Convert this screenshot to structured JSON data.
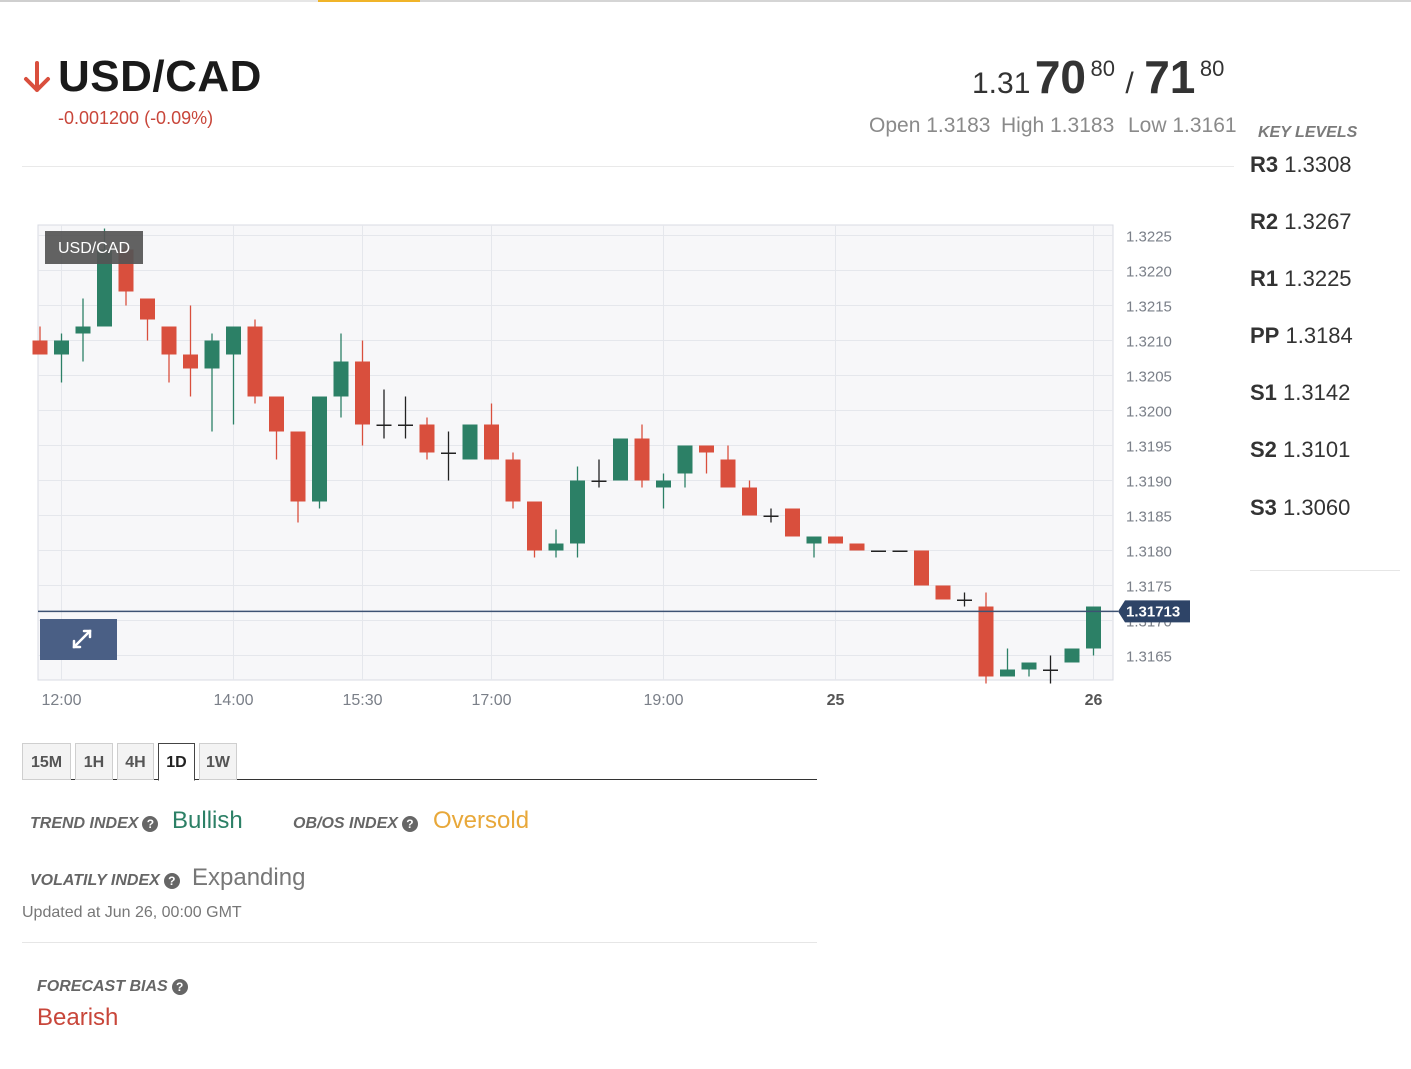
{
  "instrument": {
    "pair": "USD/CAD",
    "change": "-0.001200 (-0.09%)",
    "direction": "down"
  },
  "quote": {
    "bid_prefix": "1.31",
    "bid_big": "70",
    "bid_sup": "80",
    "separator": "/",
    "ask_big": "71",
    "ask_sup": "80"
  },
  "ohl": {
    "open": "Open 1.3183",
    "high": "High 1.3183",
    "low": "Low 1.3161"
  },
  "key_levels": {
    "title": "KEY LEVELS",
    "levels": [
      {
        "name": "R3",
        "value": "1.3308"
      },
      {
        "name": "R2",
        "value": "1.3267"
      },
      {
        "name": "R1",
        "value": "1.3225"
      },
      {
        "name": "PP",
        "value": "1.3184"
      },
      {
        "name": "S1",
        "value": "1.3142"
      },
      {
        "name": "S2",
        "value": "1.3101"
      },
      {
        "name": "S3",
        "value": "1.3060"
      }
    ]
  },
  "timeframes": [
    "15M",
    "1H",
    "4H",
    "1D",
    "1W"
  ],
  "active_timeframe": "1D",
  "indices": {
    "trend_label": "TREND INDEX",
    "trend_value": "Bullish",
    "obos_label": "OB/OS INDEX",
    "obos_value": "Oversold",
    "volatility_label": "VOLATILY INDEX",
    "volatility_value": "Expanding",
    "updated": "Updated at Jun 26, 00:00 GMT",
    "forecast_label": "FORECAST BIAS",
    "forecast_value": "Bearish"
  },
  "colors": {
    "bullish": "#2c8066",
    "bearish": "#d94f3d",
    "oversold": "#e8a83a",
    "bearish_text": "#c8463a",
    "down_arrow": "#d94f3d",
    "price_line": "#3d5273"
  },
  "chart_data": {
    "type": "candlestick",
    "chart_label": "USD/CAD",
    "current_price": 1.31713,
    "current_price_label": "1.31713",
    "y_ticks": [
      "1.3225",
      "1.3220",
      "1.3215",
      "1.3210",
      "1.3205",
      "1.3200",
      "1.3195",
      "1.3190",
      "1.3185",
      "1.3180",
      "1.3175",
      "1.3170",
      "1.3165"
    ],
    "ylim": [
      1.31615,
      1.32265
    ],
    "x_labels": [
      {
        "label": "12:00",
        "index": 1,
        "bold": false
      },
      {
        "label": "14:00",
        "index": 9,
        "bold": false
      },
      {
        "label": "15:30",
        "index": 15,
        "bold": false
      },
      {
        "label": "17:00",
        "index": 21,
        "bold": false
      },
      {
        "label": "19:00",
        "index": 29,
        "bold": false
      },
      {
        "label": "25",
        "index": 37,
        "bold": true
      },
      {
        "label": "26",
        "index": 49,
        "bold": true
      }
    ],
    "candles": [
      {
        "o": 1.321,
        "h": 1.3212,
        "l": 1.3208,
        "c": 1.3208
      },
      {
        "o": 1.3208,
        "h": 1.3211,
        "l": 1.3204,
        "c": 1.321
      },
      {
        "o": 1.3211,
        "h": 1.3216,
        "l": 1.3207,
        "c": 1.3212
      },
      {
        "o": 1.3212,
        "h": 1.3226,
        "l": 1.3212,
        "c": 1.3223
      },
      {
        "o": 1.3223,
        "h": 1.3224,
        "l": 1.3215,
        "c": 1.3217
      },
      {
        "o": 1.3216,
        "h": 1.3216,
        "l": 1.321,
        "c": 1.3213
      },
      {
        "o": 1.3212,
        "h": 1.3212,
        "l": 1.3204,
        "c": 1.3208
      },
      {
        "o": 1.3208,
        "h": 1.3215,
        "l": 1.3202,
        "c": 1.3206
      },
      {
        "o": 1.3206,
        "h": 1.3211,
        "l": 1.3197,
        "c": 1.321
      },
      {
        "o": 1.3208,
        "h": 1.3212,
        "l": 1.3198,
        "c": 1.3212
      },
      {
        "o": 1.3212,
        "h": 1.3213,
        "l": 1.3201,
        "c": 1.3202
      },
      {
        "o": 1.3202,
        "h": 1.3202,
        "l": 1.3193,
        "c": 1.3197
      },
      {
        "o": 1.3197,
        "h": 1.3197,
        "l": 1.3184,
        "c": 1.3187
      },
      {
        "o": 1.3187,
        "h": 1.3202,
        "l": 1.3186,
        "c": 1.3202
      },
      {
        "o": 1.3202,
        "h": 1.3211,
        "l": 1.3199,
        "c": 1.3207
      },
      {
        "o": 1.3207,
        "h": 1.321,
        "l": 1.3195,
        "c": 1.3198
      },
      {
        "o": 1.3198,
        "h": 1.3203,
        "l": 1.3196,
        "c": 1.3198
      },
      {
        "o": 1.3198,
        "h": 1.3202,
        "l": 1.3196,
        "c": 1.3198
      },
      {
        "o": 1.3198,
        "h": 1.3199,
        "l": 1.3193,
        "c": 1.3194
      },
      {
        "o": 1.3194,
        "h": 1.3197,
        "l": 1.319,
        "c": 1.3194
      },
      {
        "o": 1.3193,
        "h": 1.3198,
        "l": 1.3193,
        "c": 1.3198
      },
      {
        "o": 1.3198,
        "h": 1.3201,
        "l": 1.3193,
        "c": 1.3193
      },
      {
        "o": 1.3193,
        "h": 1.3194,
        "l": 1.3186,
        "c": 1.3187
      },
      {
        "o": 1.3187,
        "h": 1.3187,
        "l": 1.3179,
        "c": 1.318
      },
      {
        "o": 1.318,
        "h": 1.3183,
        "l": 1.3179,
        "c": 1.3181
      },
      {
        "o": 1.3181,
        "h": 1.3192,
        "l": 1.3179,
        "c": 1.319
      },
      {
        "o": 1.319,
        "h": 1.3193,
        "l": 1.3189,
        "c": 1.319
      },
      {
        "o": 1.319,
        "h": 1.3196,
        "l": 1.319,
        "c": 1.3196
      },
      {
        "o": 1.3196,
        "h": 1.3198,
        "l": 1.3189,
        "c": 1.319
      },
      {
        "o": 1.3189,
        "h": 1.3191,
        "l": 1.3186,
        "c": 1.319
      },
      {
        "o": 1.3191,
        "h": 1.3195,
        "l": 1.3189,
        "c": 1.3195
      },
      {
        "o": 1.3195,
        "h": 1.3195,
        "l": 1.3191,
        "c": 1.3194
      },
      {
        "o": 1.3193,
        "h": 1.3195,
        "l": 1.3189,
        "c": 1.3189
      },
      {
        "o": 1.3189,
        "h": 1.319,
        "l": 1.3185,
        "c": 1.3185
      },
      {
        "o": 1.3185,
        "h": 1.3186,
        "l": 1.3184,
        "c": 1.3185
      },
      {
        "o": 1.3186,
        "h": 1.3186,
        "l": 1.3182,
        "c": 1.3182
      },
      {
        "o": 1.3181,
        "h": 1.3182,
        "l": 1.3179,
        "c": 1.3182
      },
      {
        "o": 1.3182,
        "h": 1.3182,
        "l": 1.3181,
        "c": 1.3181
      },
      {
        "o": 1.3181,
        "h": 1.3181,
        "l": 1.318,
        "c": 1.318
      },
      {
        "o": 1.318,
        "h": 1.318,
        "l": 1.318,
        "c": 1.318
      },
      {
        "o": 1.318,
        "h": 1.318,
        "l": 1.318,
        "c": 1.318
      },
      {
        "o": 1.318,
        "h": 1.318,
        "l": 1.3175,
        "c": 1.3175
      },
      {
        "o": 1.3175,
        "h": 1.3175,
        "l": 1.3173,
        "c": 1.3173
      },
      {
        "o": 1.3173,
        "h": 1.3174,
        "l": 1.3172,
        "c": 1.3173
      },
      {
        "o": 1.3172,
        "h": 1.3174,
        "l": 1.3161,
        "c": 1.3162
      },
      {
        "o": 1.3162,
        "h": 1.3166,
        "l": 1.3162,
        "c": 1.3163
      },
      {
        "o": 1.3163,
        "h": 1.3164,
        "l": 1.3162,
        "c": 1.3164
      },
      {
        "o": 1.3163,
        "h": 1.3165,
        "l": 1.3161,
        "c": 1.3163
      },
      {
        "o": 1.3164,
        "h": 1.3166,
        "l": 1.3164,
        "c": 1.3166
      },
      {
        "o": 1.3166,
        "h": 1.3172,
        "l": 1.3165,
        "c": 1.3172
      }
    ]
  }
}
